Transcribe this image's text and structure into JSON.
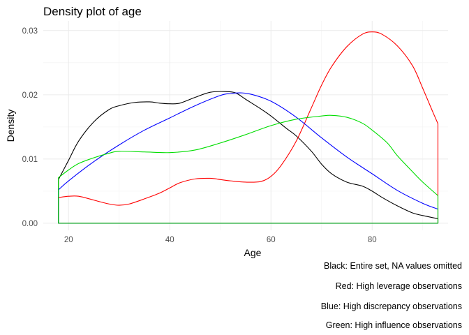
{
  "chart_data": {
    "type": "line",
    "title": "Density plot of age",
    "xlabel": "Age",
    "ylabel": "Density",
    "xlim": [
      15,
      95
    ],
    "ylim": [
      -0.0011,
      0.0315
    ],
    "x_ticks": [
      20,
      40,
      60,
      80
    ],
    "y_ticks": [
      0.0,
      0.01,
      0.02,
      0.03
    ],
    "y_tick_labels": [
      "0.00",
      "0.01",
      "0.02",
      "0.03"
    ],
    "grid": true,
    "legend": "none",
    "caption": [
      "Black: Entire set, NA values omitted",
      "Red: High leverage observations",
      "Blue: High discrepancy observations",
      "Green: High influence observations"
    ],
    "series": [
      {
        "color": "#000000",
        "x": [
          18,
          20,
          22,
          25,
          28,
          30,
          33,
          36,
          38,
          40,
          42,
          45,
          48,
          51,
          53,
          55,
          58,
          60,
          63,
          65,
          68,
          70,
          72,
          75,
          78,
          80,
          82,
          85,
          88,
          90,
          93
        ],
        "y": [
          0.0068,
          0.0098,
          0.0128,
          0.0158,
          0.0177,
          0.0183,
          0.0188,
          0.0189,
          0.0187,
          0.0186,
          0.0187,
          0.0196,
          0.0204,
          0.0205,
          0.0203,
          0.0193,
          0.0178,
          0.0167,
          0.0148,
          0.0136,
          0.0112,
          0.0092,
          0.0077,
          0.0064,
          0.0058,
          0.005,
          0.004,
          0.0027,
          0.0016,
          0.0012,
          0.0007
        ]
      },
      {
        "color": "#ff0000",
        "x": [
          18,
          20,
          22,
          25,
          28,
          30,
          32,
          35,
          38,
          40,
          42,
          45,
          48,
          50,
          52,
          55,
          58,
          60,
          62,
          65,
          68,
          70,
          72,
          75,
          78,
          80,
          82,
          85,
          88,
          90,
          92,
          93
        ],
        "y": [
          0.004,
          0.0042,
          0.0042,
          0.0036,
          0.003,
          0.0028,
          0.003,
          0.0038,
          0.0047,
          0.0055,
          0.0063,
          0.0069,
          0.007,
          0.0068,
          0.0066,
          0.0064,
          0.0065,
          0.0073,
          0.009,
          0.0128,
          0.018,
          0.0215,
          0.0244,
          0.0275,
          0.0294,
          0.0298,
          0.0294,
          0.0276,
          0.0245,
          0.021,
          0.0173,
          0.0155
        ]
      },
      {
        "color": "#0000ff",
        "x": [
          18,
          20,
          25,
          30,
          35,
          40,
          45,
          50,
          52,
          54,
          56,
          60,
          65,
          70,
          75,
          80,
          85,
          90,
          93
        ],
        "y": [
          0.0052,
          0.0066,
          0.0096,
          0.0122,
          0.0145,
          0.0164,
          0.0183,
          0.0199,
          0.0202,
          0.0203,
          0.0201,
          0.019,
          0.0165,
          0.0133,
          0.0103,
          0.0077,
          0.0051,
          0.0031,
          0.0022
        ]
      },
      {
        "color": "#00dd00",
        "x": [
          18,
          20,
          22,
          25,
          28,
          30,
          35,
          40,
          45,
          50,
          55,
          60,
          65,
          70,
          72,
          75,
          78,
          80,
          83,
          85,
          88,
          90,
          93
        ],
        "y": [
          0.0071,
          0.0083,
          0.0093,
          0.0102,
          0.0109,
          0.0112,
          0.0111,
          0.011,
          0.0114,
          0.0125,
          0.0138,
          0.0152,
          0.0162,
          0.0167,
          0.0168,
          0.0165,
          0.0156,
          0.0145,
          0.0125,
          0.0105,
          0.008,
          0.0064,
          0.0043
        ]
      }
    ]
  }
}
